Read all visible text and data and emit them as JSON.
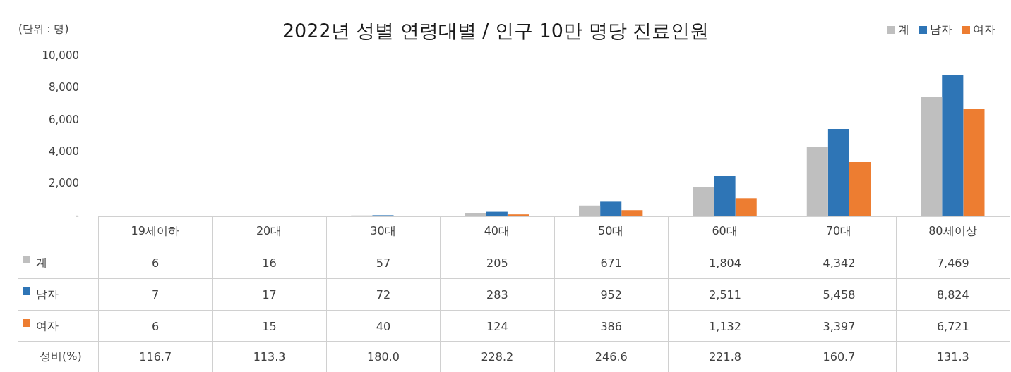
{
  "chart_data": [
    {
      "type": "bar",
      "title": "2022년 성별 연령대별 / 인구 10만 명당 진료인원",
      "ylabel": "(단위 : 명)",
      "categories": [
        "19세이하",
        "20대",
        "30대",
        "40대",
        "50대",
        "60대",
        "70대",
        "80세이상"
      ],
      "series": [
        {
          "name": "계",
          "color": "#bfbfbf",
          "values": [
            6,
            16,
            57,
            205,
            671,
            1804,
            4342,
            7469
          ],
          "value_labels": [
            "6",
            "16",
            "57",
            "205",
            "671",
            "1,804",
            "4,342",
            "7,469"
          ]
        },
        {
          "name": "남자",
          "color": "#2e75b6",
          "values": [
            7,
            17,
            72,
            283,
            952,
            2511,
            5458,
            8824
          ],
          "value_labels": [
            "7",
            "17",
            "72",
            "283",
            "952",
            "2,511",
            "5,458",
            "8,824"
          ]
        },
        {
          "name": "여자",
          "color": "#ed7d31",
          "values": [
            6,
            15,
            40,
            124,
            386,
            1132,
            3397,
            6721
          ],
          "value_labels": [
            "6",
            "15",
            "40",
            "124",
            "386",
            "1,132",
            "3,397",
            "6,721"
          ]
        }
      ],
      "ylim": [
        0,
        10000
      ],
      "yticks": [
        {
          "value": 0,
          "label": "-"
        },
        {
          "value": 2000,
          "label": "2,000"
        },
        {
          "value": 4000,
          "label": "4,000"
        },
        {
          "value": 6000,
          "label": "6,000"
        },
        {
          "value": 8000,
          "label": "8,000"
        },
        {
          "value": 10000,
          "label": "10,000"
        }
      ],
      "grid": false,
      "legend": "top right"
    },
    {
      "type": "other",
      "series": [
        {
          "name": "성비(%)",
          "values": [
            116.7,
            113.3,
            180.0,
            228.2,
            246.6,
            221.8,
            160.7,
            131.3
          ],
          "value_labels": [
            "116.7",
            "113.3",
            "180.0",
            "228.2",
            "246.6",
            "221.8",
            "160.7",
            "131.3"
          ]
        }
      ]
    }
  ]
}
